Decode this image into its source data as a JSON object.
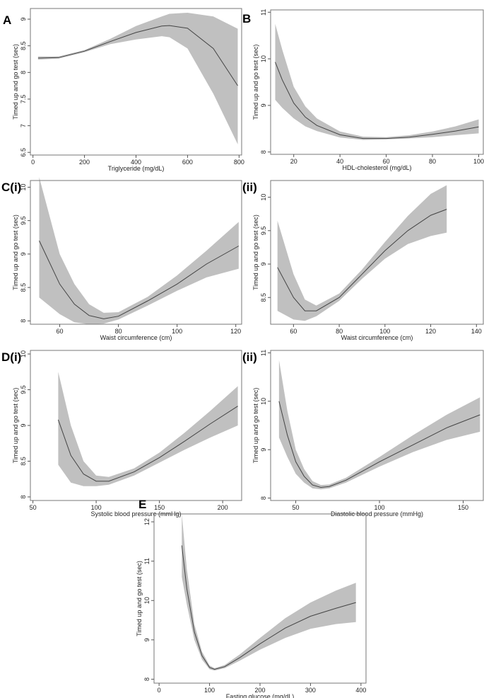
{
  "chart_data": [
    {
      "id": "A",
      "panel_label": "A",
      "type": "line",
      "xlabel": "Triglyceride (mg/dL)",
      "ylabel": "Timed up and go test (sec)",
      "xlim": [
        -10,
        810
      ],
      "ylim": [
        6.45,
        9.2
      ],
      "xticks": [
        0,
        200,
        400,
        600,
        800
      ],
      "yticks": [
        6.5,
        7,
        7.5,
        8,
        8.5,
        9
      ],
      "x": [
        20,
        100,
        200,
        300,
        400,
        500,
        530,
        600,
        700,
        795
      ],
      "y": [
        8.27,
        8.28,
        8.4,
        8.58,
        8.75,
        8.87,
        8.88,
        8.83,
        8.45,
        7.75
      ],
      "lower": [
        8.24,
        8.26,
        8.38,
        8.53,
        8.62,
        8.68,
        8.66,
        8.45,
        7.6,
        6.65
      ],
      "upper": [
        8.3,
        8.3,
        8.42,
        8.63,
        8.87,
        9.05,
        9.1,
        9.12,
        9.05,
        8.82
      ]
    },
    {
      "id": "B",
      "panel_label": "B",
      "type": "line",
      "xlabel": "HDL-cholesterol (mg/dL)",
      "ylabel": "Timed up and go test (sec)",
      "xlim": [
        10,
        102
      ],
      "ylim": [
        7.95,
        11.05
      ],
      "xticks": [
        20,
        40,
        60,
        80,
        100
      ],
      "yticks": [
        8,
        9,
        10,
        11
      ],
      "x": [
        12,
        15,
        20,
        25,
        30,
        40,
        50,
        60,
        70,
        80,
        90,
        100
      ],
      "y": [
        9.93,
        9.55,
        9.05,
        8.75,
        8.57,
        8.37,
        8.29,
        8.29,
        8.32,
        8.38,
        8.45,
        8.54
      ],
      "lower": [
        9.12,
        8.95,
        8.72,
        8.55,
        8.45,
        8.31,
        8.26,
        8.27,
        8.29,
        8.32,
        8.36,
        8.4
      ],
      "upper": [
        10.75,
        10.2,
        9.4,
        8.98,
        8.72,
        8.44,
        8.33,
        8.32,
        8.36,
        8.44,
        8.55,
        8.7
      ]
    },
    {
      "id": "Ci",
      "panel_label": "C(i)",
      "type": "line",
      "xlabel": "Waist circumference (cm)",
      "ylabel": "Timed up and go test (sec)",
      "xlim": [
        50,
        122
      ],
      "ylim": [
        7.95,
        10.1
      ],
      "xticks": [
        60,
        80,
        100,
        120
      ],
      "yticks": [
        8,
        8.5,
        9,
        9.5,
        10
      ],
      "x": [
        53,
        60,
        65,
        70,
        75,
        80,
        90,
        100,
        110,
        121
      ],
      "y": [
        9.2,
        8.55,
        8.25,
        8.08,
        8.03,
        8.07,
        8.3,
        8.55,
        8.85,
        9.12
      ],
      "lower": [
        8.35,
        8.1,
        7.98,
        7.95,
        7.96,
        8.02,
        8.23,
        8.45,
        8.65,
        8.78
      ],
      "upper": [
        10.15,
        9.0,
        8.55,
        8.25,
        8.12,
        8.13,
        8.36,
        8.68,
        9.05,
        9.48
      ]
    },
    {
      "id": "Cii",
      "panel_label": "(ii)",
      "type": "line",
      "xlabel": "Waist circumference (cm)",
      "ylabel": "Timed up and go test (sec)",
      "xlim": [
        50,
        143
      ],
      "ylim": [
        8.1,
        10.25
      ],
      "xticks": [
        60,
        80,
        100,
        120,
        140
      ],
      "yticks": [
        8.5,
        9,
        9.5,
        10
      ],
      "x": [
        53,
        60,
        65,
        70,
        80,
        90,
        100,
        110,
        120,
        127
      ],
      "y": [
        8.95,
        8.5,
        8.3,
        8.3,
        8.5,
        8.85,
        9.2,
        9.5,
        9.73,
        9.82
      ],
      "lower": [
        8.3,
        8.17,
        8.15,
        8.22,
        8.45,
        8.78,
        9.08,
        9.3,
        9.42,
        9.47
      ],
      "upper": [
        9.65,
        8.85,
        8.47,
        8.38,
        8.56,
        8.92,
        9.33,
        9.72,
        10.05,
        10.18
      ]
    },
    {
      "id": "Di",
      "panel_label": "D(i)",
      "type": "line",
      "xlabel": "Systolic blood pressure (mmHg)",
      "ylabel": "Timed up and go test (sec)",
      "xlim": [
        48,
        215
      ],
      "ylim": [
        7.95,
        10.05
      ],
      "xticks": [
        50,
        100,
        150,
        200
      ],
      "yticks": [
        8,
        8.5,
        9,
        9.5,
        10
      ],
      "x": [
        70,
        80,
        90,
        100,
        110,
        130,
        150,
        170,
        190,
        212
      ],
      "y": [
        9.08,
        8.58,
        8.32,
        8.22,
        8.22,
        8.35,
        8.55,
        8.78,
        9.02,
        9.27
      ],
      "lower": [
        8.45,
        8.2,
        8.15,
        8.15,
        8.17,
        8.3,
        8.48,
        8.66,
        8.83,
        9.0
      ],
      "upper": [
        9.75,
        9.0,
        8.5,
        8.3,
        8.28,
        8.4,
        8.62,
        8.9,
        9.2,
        9.55
      ]
    },
    {
      "id": "Dii",
      "panel_label": "(ii)",
      "type": "line",
      "xlabel": "Diastolic blood pressure (mmHg)",
      "ylabel": "Timed up and go test (sec)",
      "xlim": [
        35,
        162
      ],
      "ylim": [
        7.95,
        11.05
      ],
      "xticks": [
        50,
        100,
        150
      ],
      "yticks": [
        8,
        9,
        10,
        11
      ],
      "x": [
        40,
        45,
        50,
        55,
        60,
        65,
        70,
        80,
        100,
        120,
        140,
        160
      ],
      "y": [
        10.0,
        9.3,
        8.75,
        8.45,
        8.27,
        8.22,
        8.24,
        8.37,
        8.75,
        9.1,
        9.45,
        9.72
      ],
      "lower": [
        9.25,
        8.85,
        8.5,
        8.32,
        8.2,
        8.18,
        8.2,
        8.32,
        8.65,
        8.95,
        9.2,
        9.37
      ],
      "upper": [
        10.85,
        9.8,
        9.0,
        8.6,
        8.35,
        8.27,
        8.28,
        8.42,
        8.85,
        9.3,
        9.72,
        10.08
      ]
    },
    {
      "id": "E",
      "panel_label": "E",
      "type": "line",
      "xlabel": "Fasting glucose (mg/dL)",
      "ylabel": "Timed up and go test (sec)",
      "xlim": [
        -10,
        410
      ],
      "ylim": [
        7.9,
        12.2
      ],
      "xticks": [
        0,
        100,
        200,
        300,
        400
      ],
      "yticks": [
        8,
        9,
        10,
        11,
        12
      ],
      "x": [
        45,
        55,
        70,
        85,
        100,
        110,
        130,
        160,
        200,
        250,
        300,
        350,
        390
      ],
      "y": [
        11.4,
        10.3,
        9.2,
        8.6,
        8.3,
        8.25,
        8.32,
        8.55,
        8.9,
        9.3,
        9.6,
        9.8,
        9.95
      ],
      "lower": [
        10.6,
        9.9,
        9.0,
        8.5,
        8.25,
        8.22,
        8.28,
        8.47,
        8.75,
        9.05,
        9.28,
        9.4,
        9.45
      ],
      "upper": [
        12.2,
        10.8,
        9.4,
        8.7,
        8.35,
        8.28,
        8.36,
        8.63,
        9.05,
        9.55,
        9.95,
        10.25,
        10.45
      ]
    }
  ],
  "colors": {
    "band": "#c0c0c0",
    "line": "#444444",
    "frame": "#777777"
  }
}
